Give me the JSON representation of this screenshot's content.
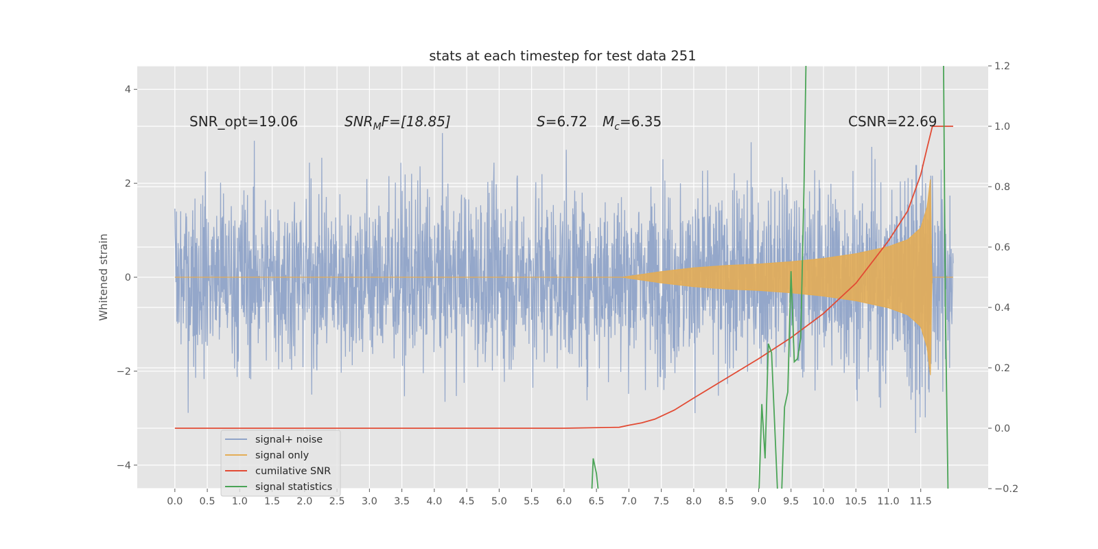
{
  "chart_data": {
    "type": "line",
    "title": "stats at each timestep for test data 251",
    "xlabel": "",
    "ylabel": "Whitened strain",
    "xlim": [
      -0.58,
      12.54
    ],
    "ylim": [
      -4.5,
      4.5
    ],
    "y2lim": [
      -0.2,
      1.2
    ],
    "xticks": [
      "0.0",
      "0.5",
      "1.0",
      "1.5",
      "2.0",
      "2.5",
      "3.0",
      "3.5",
      "4.0",
      "4.5",
      "5.0",
      "5.5",
      "6.0",
      "6.5",
      "7.0",
      "7.5",
      "8.0",
      "8.5",
      "9.0",
      "9.5",
      "10.0",
      "10.5",
      "11.0",
      "11.5"
    ],
    "yticks": [
      "4",
      "2",
      "0",
      "−2",
      "−4"
    ],
    "y2ticks": [
      "1.2",
      "1.0",
      "0.8",
      "0.6",
      "0.4",
      "0.2",
      "0.0",
      "−0.2"
    ],
    "grid": true,
    "legend_position": "lower-left",
    "annotations": {
      "snr_opt": "SNR_opt=19.06",
      "snr_mf_sym": "SNR",
      "snr_mf_sub": "M",
      "snr_mf_rest": "F=[18.85]",
      "s_sym": "S",
      "s_val": "=6.72",
      "mc_sym": "M",
      "mc_sub": "c",
      "mc_val": "=6.35",
      "csnr": "CSNR=22.69"
    },
    "series": [
      {
        "name": "signal+ noise",
        "color": "#8fa3c8",
        "description_values": {
          "x_range": [
            0.0,
            12.0
          ],
          "noise_std": 1.0,
          "max_abs": 4.1
        }
      },
      {
        "name": "signal only",
        "color": "#e3ad56",
        "envelope": {
          "x": [
            0.0,
            6.9,
            7.5,
            8.0,
            8.5,
            9.0,
            9.5,
            10.0,
            10.5,
            11.0,
            11.3,
            11.5,
            11.6,
            11.65,
            11.67
          ],
          "amp": [
            0.0,
            0.0,
            0.12,
            0.2,
            0.25,
            0.28,
            0.33,
            0.4,
            0.5,
            0.65,
            0.8,
            1.05,
            1.5,
            2.1,
            0.0
          ]
        }
      },
      {
        "name": "cumilative SNR",
        "color": "#e24a33",
        "x": [
          0.0,
          6.0,
          6.85,
          7.0,
          7.2,
          7.4,
          7.7,
          8.0,
          8.5,
          9.0,
          9.5,
          10.0,
          10.5,
          11.0,
          11.3,
          11.5,
          11.6,
          11.68,
          12.0
        ],
        "y": [
          0.0,
          0.0,
          0.003,
          0.01,
          0.018,
          0.03,
          0.06,
          0.1,
          0.165,
          0.23,
          0.3,
          0.38,
          0.48,
          0.62,
          0.72,
          0.84,
          0.93,
          1.0,
          1.0
        ]
      },
      {
        "name": "signal statistics",
        "color": "#4aa456",
        "x": [
          6.42,
          6.45,
          6.5,
          6.55,
          9.0,
          9.05,
          9.1,
          9.15,
          9.2,
          9.25,
          9.3,
          9.35,
          9.4,
          9.45,
          9.5,
          9.55,
          9.6,
          9.65,
          9.7,
          9.73,
          9.76,
          11.85,
          11.88,
          11.92,
          11.95
        ],
        "y": [
          -0.25,
          -0.1,
          -0.15,
          -0.25,
          -0.25,
          0.08,
          -0.1,
          0.28,
          0.25,
          0.0,
          -0.25,
          -0.25,
          0.07,
          0.12,
          0.52,
          0.22,
          0.23,
          0.3,
          0.8,
          1.2,
          1.25,
          1.25,
          0.4,
          -0.2,
          -0.3
        ]
      }
    ]
  }
}
